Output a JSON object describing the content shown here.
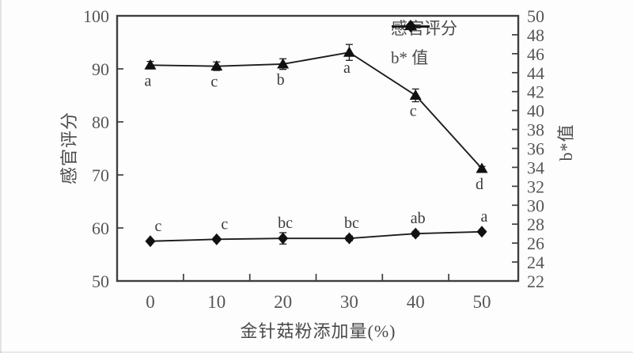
{
  "figure": {
    "xlabel": "金针菇粉添加量(%)",
    "ylabel_left": "感官评分",
    "ylabel_right": "b*值"
  },
  "legend": {
    "items": [
      {
        "label": "感官评分",
        "marker": "triangle"
      },
      {
        "label": "b* 值",
        "marker": "diamond"
      }
    ]
  },
  "chart_data": {
    "type": "line",
    "x": [
      0,
      10,
      20,
      30,
      40,
      50
    ],
    "xlabel": "金针菇粉添加量(%)",
    "ylabel_left": "感官评分",
    "ylabel_right": "b*值",
    "ylim_left": [
      50,
      100
    ],
    "yticks_left": [
      50,
      60,
      70,
      80,
      90,
      100
    ],
    "ylim_right": [
      22,
      50
    ],
    "yticks_right": [
      22,
      24,
      26,
      28,
      30,
      32,
      34,
      36,
      38,
      40,
      42,
      44,
      46,
      48,
      50
    ],
    "grid": false,
    "legend_position": "top-right-inside",
    "series": [
      {
        "name": "感官评分",
        "axis": "left",
        "marker": "triangle",
        "values": [
          90.7,
          90.5,
          90.9,
          93.1,
          85.0,
          71.2
        ],
        "errors": [
          0.7,
          0.8,
          1.0,
          1.5,
          1.2,
          0.4
        ],
        "sig_labels": [
          "a",
          "c",
          "b",
          "a",
          "c",
          "d"
        ]
      },
      {
        "name": "b* 值",
        "axis": "right",
        "marker": "diamond",
        "values": [
          26.2,
          26.4,
          26.5,
          26.5,
          27.0,
          27.2
        ],
        "errors": [
          0.15,
          0.2,
          0.6,
          0.25,
          0.25,
          0.15
        ],
        "sig_labels": [
          "c",
          "c",
          "bc",
          "bc",
          "ab",
          "a"
        ]
      }
    ],
    "colors": {
      "line": "#1c1c1c",
      "marker": "#111111",
      "frame": "#3f3f3f",
      "text": "#4a4a4a",
      "tick_text": "#565656",
      "sig_text": "#3a3a3a"
    }
  }
}
